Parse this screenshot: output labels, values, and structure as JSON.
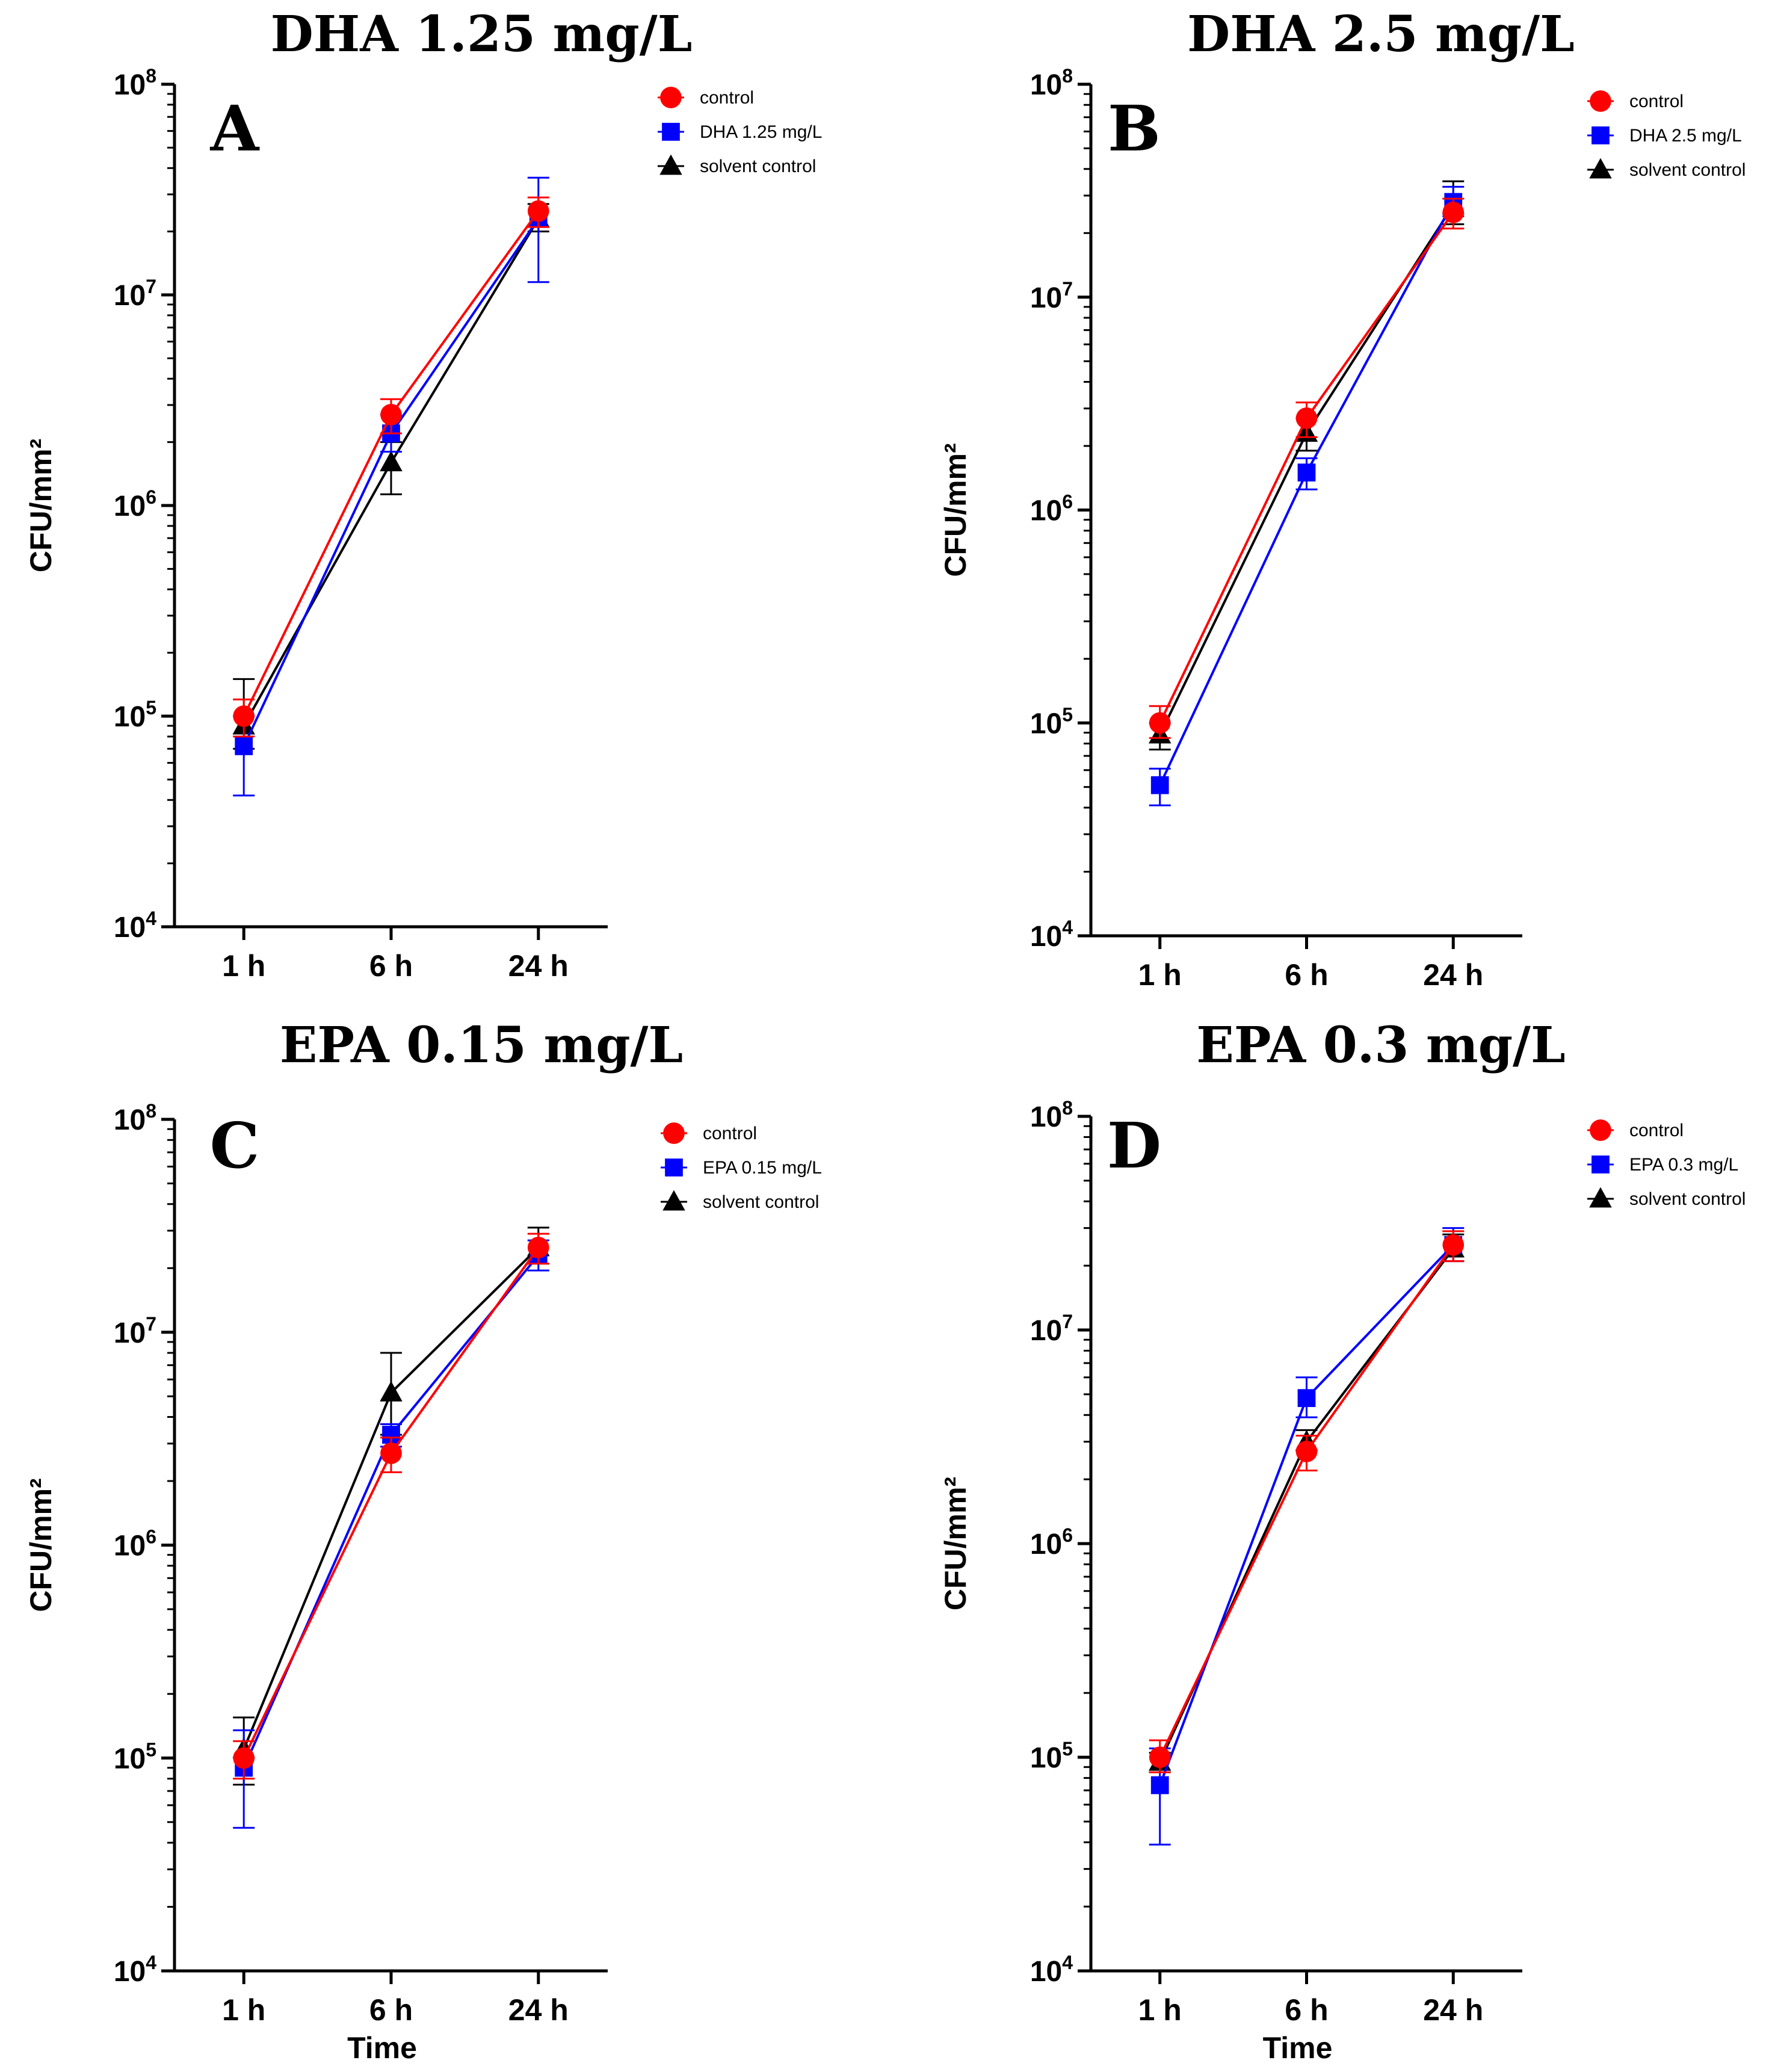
{
  "chart_data": [
    {
      "type": "line",
      "panel_letter": "A",
      "title": "DHA 1.25 mg/L",
      "xlabel": "",
      "ylabel": "CFU/mm²",
      "yscale": "log",
      "ylim": [
        10000,
        100000000
      ],
      "ytick_base": "10",
      "ytick_exponents": [
        "4",
        "5",
        "6",
        "7",
        "8"
      ],
      "categories": [
        "1 h",
        "6 h",
        "24 h"
      ],
      "legend_position": "top-right",
      "series": [
        {
          "name": "control",
          "color": "#ff0000",
          "marker": "circle",
          "values": [
            100000,
            2700000,
            25000000
          ],
          "err_low": [
            80000,
            2200000,
            21000000
          ],
          "err_high": [
            120000,
            3200000,
            29000000
          ]
        },
        {
          "name": "DHA 1.25 mg/L",
          "color": "#0000ff",
          "marker": "square",
          "values": [
            72000,
            2200000,
            23000000
          ],
          "err_low": [
            42000,
            1800000,
            11500000
          ],
          "err_high": [
            100000,
            2700000,
            36000000
          ]
        },
        {
          "name": "solvent control",
          "color": "#000000",
          "marker": "triangle",
          "values": [
            90000,
            1600000,
            23000000
          ],
          "err_low": [
            70000,
            1130000,
            20000000
          ],
          "err_high": [
            150000,
            2000000,
            27000000
          ]
        }
      ]
    },
    {
      "type": "line",
      "panel_letter": "B",
      "title": "DHA 2.5 mg/L",
      "xlabel": "",
      "ylabel": "CFU/mm²",
      "yscale": "log",
      "ylim": [
        10000,
        100000000
      ],
      "ytick_base": "10",
      "ytick_exponents": [
        "4",
        "5",
        "6",
        "7",
        "8"
      ],
      "categories": [
        "1 h",
        "6 h",
        "24 h"
      ],
      "legend_position": "top-right",
      "series": [
        {
          "name": "control",
          "color": "#ff0000",
          "marker": "circle",
          "values": [
            100000,
            2700000,
            25000000
          ],
          "err_low": [
            85000,
            2200000,
            21000000
          ],
          "err_high": [
            120000,
            3200000,
            29000000
          ]
        },
        {
          "name": "DHA 2.5 mg/L",
          "color": "#0000ff",
          "marker": "square",
          "values": [
            51000,
            1500000,
            28000000
          ],
          "err_low": [
            41000,
            1250000,
            24000000
          ],
          "err_high": [
            61000,
            1750000,
            33000000
          ]
        },
        {
          "name": "solvent control",
          "color": "#000000",
          "marker": "triangle",
          "values": [
            88000,
            2300000,
            27000000
          ],
          "err_low": [
            75000,
            1900000,
            22000000
          ],
          "err_high": [
            100000,
            2700000,
            35000000
          ]
        }
      ]
    },
    {
      "type": "line",
      "panel_letter": "C",
      "title": "EPA 0.15 mg/L",
      "xlabel": "Time",
      "ylabel": "CFU/mm²",
      "yscale": "log",
      "ylim": [
        10000,
        100000000
      ],
      "ytick_base": "10",
      "ytick_exponents": [
        "4",
        "5",
        "6",
        "7",
        "8"
      ],
      "categories": [
        "1 h",
        "6 h",
        "24 h"
      ],
      "legend_position": "top-right",
      "series": [
        {
          "name": "control",
          "color": "#ff0000",
          "marker": "circle",
          "values": [
            100000,
            2700000,
            25000000
          ],
          "err_low": [
            80000,
            2200000,
            21000000
          ],
          "err_high": [
            120000,
            3200000,
            29000000
          ]
        },
        {
          "name": "EPA 0.15 mg/L",
          "color": "#0000ff",
          "marker": "square",
          "values": [
            90000,
            3300000,
            23000000
          ],
          "err_low": [
            47000,
            2900000,
            19500000
          ],
          "err_high": [
            135000,
            3700000,
            27000000
          ]
        },
        {
          "name": "solvent control",
          "color": "#000000",
          "marker": "triangle",
          "values": [
            110000,
            5200000,
            25000000
          ],
          "err_low": [
            75000,
            3300000,
            21000000
          ],
          "err_high": [
            155000,
            8000000,
            31000000
          ]
        }
      ]
    },
    {
      "type": "line",
      "panel_letter": "D",
      "title": "EPA 0.3 mg/L",
      "xlabel": "Time",
      "ylabel": "CFU/mm²",
      "yscale": "log",
      "ylim": [
        10000,
        100000000
      ],
      "ytick_base": "10",
      "ytick_exponents": [
        "4",
        "5",
        "6",
        "7",
        "8"
      ],
      "categories": [
        "1 h",
        "6 h",
        "24 h"
      ],
      "legend_position": "top-right",
      "series": [
        {
          "name": "control",
          "color": "#ff0000",
          "marker": "circle",
          "values": [
            100000,
            2700000,
            25000000
          ],
          "err_low": [
            85000,
            2200000,
            21000000
          ],
          "err_high": [
            120000,
            3200000,
            29000000
          ]
        },
        {
          "name": "EPA 0.3 mg/L",
          "color": "#0000ff",
          "marker": "square",
          "values": [
            74000,
            4800000,
            25000000
          ],
          "err_low": [
            39000,
            3900000,
            21000000
          ],
          "err_high": [
            110000,
            6000000,
            30000000
          ]
        },
        {
          "name": "solvent control",
          "color": "#000000",
          "marker": "triangle",
          "values": [
            95000,
            3000000,
            24000000
          ],
          "err_low": [
            85000,
            2700000,
            21000000
          ],
          "err_high": [
            105000,
            3400000,
            28000000
          ]
        }
      ]
    }
  ]
}
